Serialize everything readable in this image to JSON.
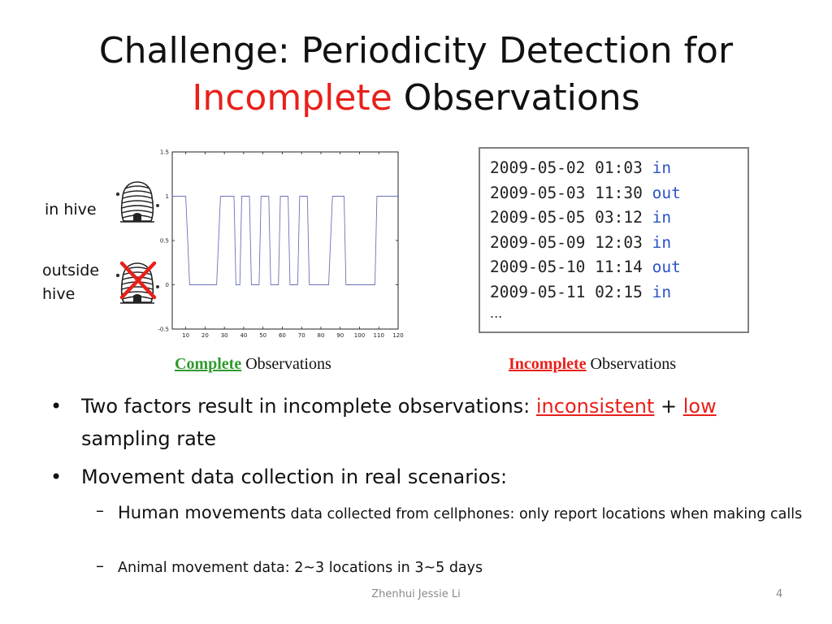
{
  "title": {
    "line1": "Challenge: Periodicity Detection for",
    "highlight": "Incomplete",
    "line2_rest": "Observations"
  },
  "labels": {
    "in_hive": "in hive",
    "outside_hive_1": "outside",
    "outside_hive_2": "hive"
  },
  "chart_data": {
    "type": "line",
    "title": "",
    "xlabel": "",
    "ylabel": "",
    "xlim": [
      3,
      120
    ],
    "ylim": [
      -0.5,
      1.5
    ],
    "x_ticks": [
      10,
      20,
      30,
      40,
      50,
      60,
      70,
      80,
      90,
      100,
      110,
      120
    ],
    "y_ticks": [
      -0.5,
      0,
      0.5,
      1,
      1.5
    ],
    "y_tick_labels": [
      "-0.5",
      "0",
      "0.5",
      "1",
      "1.5"
    ],
    "grid": false,
    "series": [
      {
        "color": "#6a72b8",
        "points": [
          [
            3,
            1
          ],
          [
            10,
            1
          ],
          [
            12,
            0
          ],
          [
            26,
            0
          ],
          [
            28,
            1
          ],
          [
            35,
            1
          ],
          [
            36,
            0
          ],
          [
            38,
            0
          ],
          [
            39,
            1
          ],
          [
            43,
            1
          ],
          [
            44,
            0
          ],
          [
            48,
            0
          ],
          [
            49,
            1
          ],
          [
            53,
            1
          ],
          [
            54,
            0
          ],
          [
            58,
            0
          ],
          [
            59,
            1
          ],
          [
            63,
            1
          ],
          [
            64,
            0
          ],
          [
            68,
            0
          ],
          [
            69,
            1
          ],
          [
            73,
            1
          ],
          [
            74,
            0
          ],
          [
            84,
            0
          ],
          [
            86,
            1
          ],
          [
            92,
            1
          ],
          [
            93,
            0
          ],
          [
            108,
            0
          ],
          [
            109,
            1
          ],
          [
            120,
            1
          ]
        ]
      }
    ]
  },
  "log": {
    "rows": [
      {
        "time": "2009-05-02 01:03",
        "status": "in"
      },
      {
        "time": "2009-05-03 11:30",
        "status": "out"
      },
      {
        "time": "2009-05-05 03:12",
        "status": "in"
      },
      {
        "time": "2009-05-09 12:03",
        "status": "in"
      },
      {
        "time": "2009-05-10 11:14",
        "status": "out"
      },
      {
        "time": "2009-05-11 02:15",
        "status": "in"
      }
    ],
    "ellipsis": "..."
  },
  "captions": {
    "complete_bold": "Complete",
    "complete_rest": "Observations",
    "incomplete_bold": "Incomplete",
    "incomplete_rest": "Observations"
  },
  "bullets": {
    "b1_pre": "Two factors result in incomplete observations:",
    "b1_red1": "inconsistent",
    "b1_plus": "+",
    "b1_red2": "low",
    "b1_post": "sampling rate",
    "b2": "Movement data collection in real scenarios:",
    "s1_big": "Human movements",
    "s1_rest": "data collected from cellphones: only report locations when making calls",
    "s2": "Animal movement data: 2~3 locations in 3~5 days"
  },
  "symbols": {
    "bullet": "•",
    "dash": "–"
  },
  "footer": {
    "author": "Zhenhui Jessie Li",
    "page": "4"
  },
  "colors": {
    "accent_red": "#e8201a",
    "complete_green": "#2e9a2e",
    "status_blue": "#2a54c8",
    "line": "#6a72b8"
  }
}
